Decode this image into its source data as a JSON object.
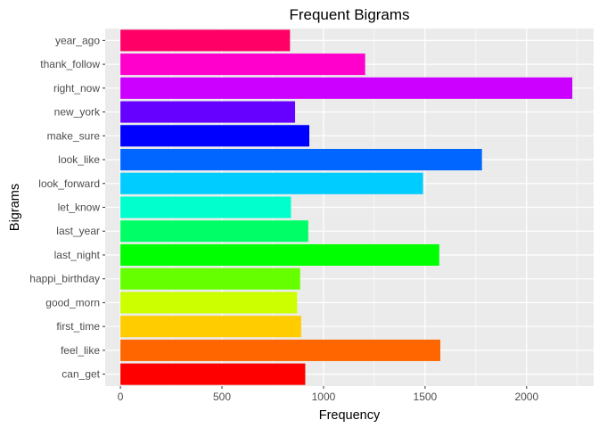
{
  "chart_data": {
    "type": "bar",
    "orientation": "horizontal",
    "title": "Frequent Bigrams",
    "xlabel": "Frequency",
    "ylabel": "Bigrams",
    "categories": [
      "can_get",
      "feel_like",
      "first_time",
      "good_morn",
      "happi_birthday",
      "last_night",
      "last_year",
      "let_know",
      "look_forward",
      "look_like",
      "make_sure",
      "new_york",
      "right_now",
      "thank_follow",
      "year_ago"
    ],
    "values": [
      910,
      1575,
      890,
      870,
      885,
      1570,
      925,
      840,
      1490,
      1780,
      930,
      860,
      2225,
      1205,
      835
    ],
    "colors": [
      "#FF0000",
      "#FF6600",
      "#FFCC00",
      "#CCFF00",
      "#66FF00",
      "#00FF00",
      "#00FF66",
      "#00FFCC",
      "#00CCFF",
      "#0066FF",
      "#0000FF",
      "#6600FF",
      "#CC00FF",
      "#FF00CC",
      "#FF0066"
    ],
    "xlim": [
      -75,
      2330
    ],
    "xticks": [
      0,
      500,
      1000,
      1500,
      2000
    ],
    "xtick_labels": [
      "0",
      "500",
      "1000",
      "1500",
      "2000"
    ],
    "grid": true,
    "panel_background": "#EBEBEB",
    "grid_color": "#FFFFFF",
    "legend": "none"
  }
}
